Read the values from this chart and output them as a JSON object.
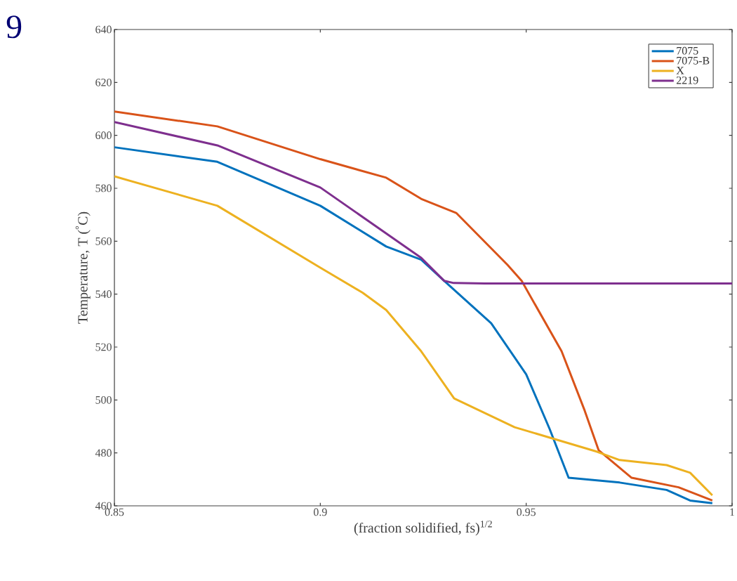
{
  "chart_data": {
    "type": "line",
    "xlabel": "(fraction solidified, fs)$^{1/2}$",
    "ylabel": "Temperature, T ($^{°}$C)",
    "annotations": [
      "9"
    ],
    "xlim": [
      0.85,
      1
    ],
    "xticks": [
      0.85,
      0.9,
      0.95,
      1
    ],
    "ylim": [
      460,
      640
    ],
    "yticks": [
      460,
      480,
      500,
      520,
      540,
      560,
      580,
      600,
      620,
      640
    ],
    "legend": "top right",
    "marker": "none",
    "line_style": "solid",
    "series": [
      {
        "name": "7075",
        "color": "#0072bd",
        "x": [
          0.85,
          0.875,
          0.9,
          0.916,
          0.9245,
          0.9301,
          0.9415,
          0.95,
          0.9557,
          0.9603,
          0.9727,
          0.9841,
          0.9898,
          0.9952
        ],
        "values": [
          595.5,
          590,
          573.4,
          558,
          553,
          545,
          529,
          509.7,
          489,
          470.6,
          468.8,
          466,
          462,
          461
        ]
      },
      {
        "name": "7075-B",
        "color": "#d95319",
        "x": [
          0.85,
          0.875,
          0.9,
          0.916,
          0.9245,
          0.933,
          0.9455,
          0.9489,
          0.9586,
          0.9642,
          0.9676,
          0.9756,
          0.987,
          0.9952
        ],
        "values": [
          609,
          603.4,
          591,
          584,
          576,
          570.7,
          551,
          545,
          518.4,
          496,
          481,
          470.6,
          467,
          462
        ]
      },
      {
        "name": "X",
        "color": "#edb120",
        "x": [
          0.85,
          0.875,
          0.9,
          0.9103,
          0.916,
          0.9245,
          0.9325,
          0.9472,
          0.9671,
          0.9727,
          0.9841,
          0.9898,
          0.9952
        ],
        "values": [
          584.5,
          573.4,
          550,
          540.5,
          534,
          518.4,
          500.6,
          489.7,
          480.5,
          477.3,
          475.4,
          472.5,
          464
        ]
      },
      {
        "name": "2219",
        "color": "#7e2f8e",
        "x": [
          0.85,
          0.875,
          0.9,
          0.9245,
          0.9301,
          0.9324,
          0.94,
          1
        ],
        "values": [
          605,
          596.2,
          580.3,
          553.7,
          545,
          544.2,
          544,
          544
        ]
      }
    ]
  }
}
